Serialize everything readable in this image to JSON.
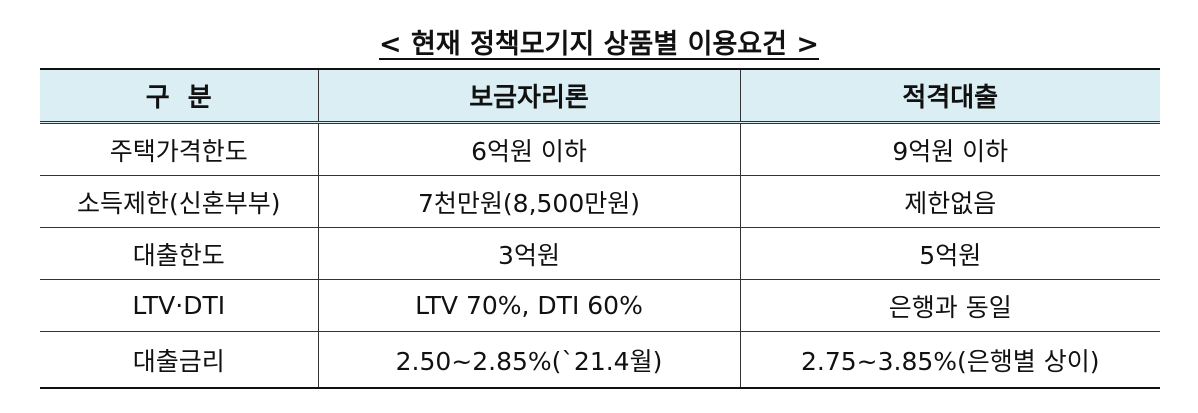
{
  "title": "< 현재 정책모기지 상품별 이용요건 >",
  "table": {
    "header": [
      "구  분",
      "보금자리론",
      "적격대출"
    ],
    "rows": [
      [
        "주택가격한도",
        "6억원 이하",
        "9억원 이하"
      ],
      [
        "소득제한(신혼부부)",
        "7천만원(8,500만원)",
        "제한없음"
      ],
      [
        "대출한도",
        "3억원",
        "5억원"
      ],
      [
        "LTV·DTI",
        "LTV 70%, DTI 60%",
        "은행과 동일"
      ],
      [
        "대출금리",
        "2.50~2.85%(`21.4월)",
        "2.75~3.85%(은행별 상이)"
      ]
    ]
  }
}
